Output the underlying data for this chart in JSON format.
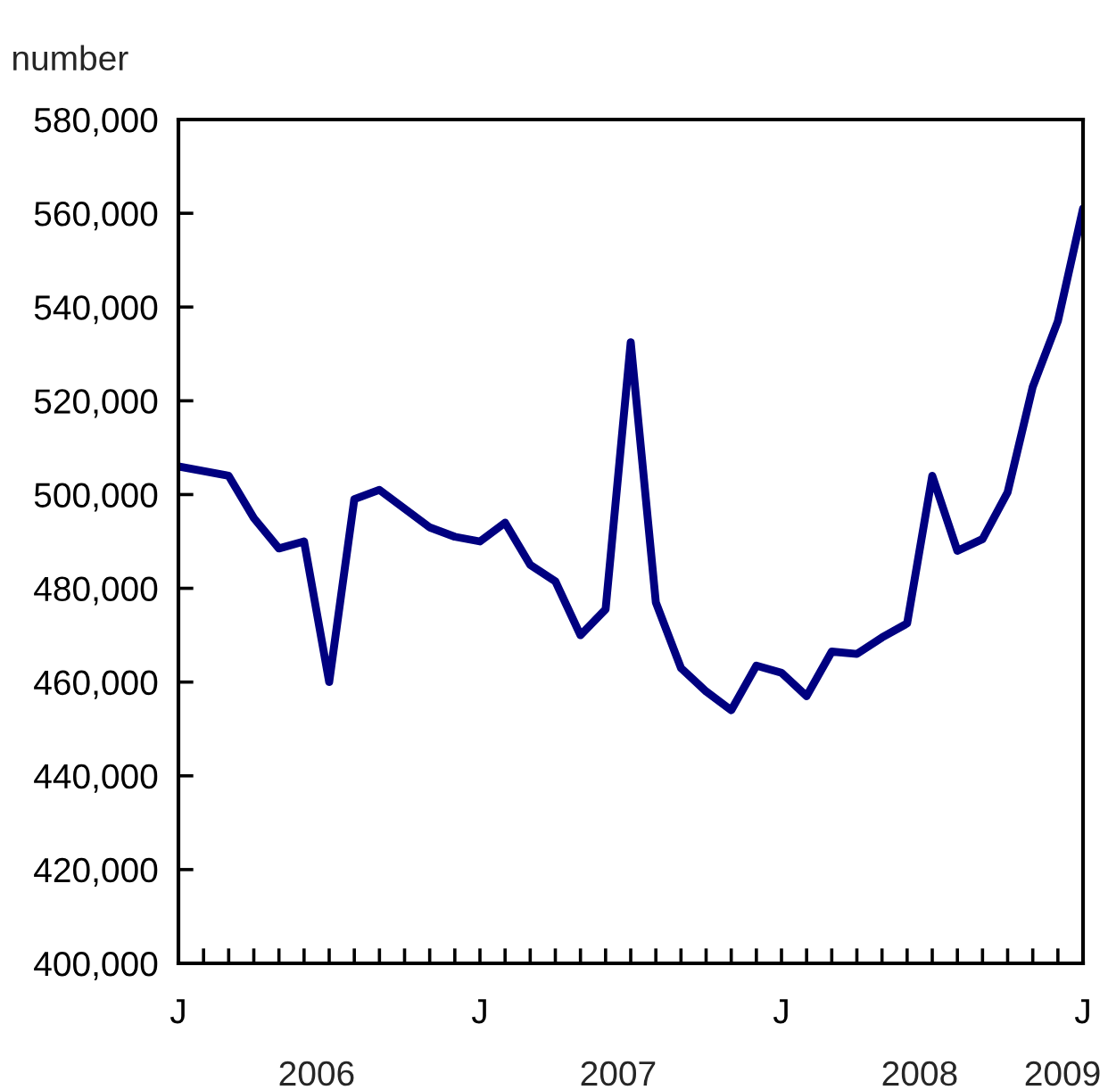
{
  "chart_data": {
    "type": "line",
    "ylabel": "number",
    "categories": [
      "J",
      null,
      null,
      null,
      null,
      null,
      null,
      null,
      null,
      null,
      null,
      null,
      "J",
      null,
      null,
      null,
      null,
      null,
      null,
      null,
      null,
      null,
      null,
      null,
      "J",
      null,
      null,
      null,
      null,
      null,
      null,
      null,
      null,
      null,
      null,
      null,
      "J"
    ],
    "series": [
      {
        "color": "#000080",
        "values": [
          506000,
          505000,
          504000,
          495000,
          488500,
          490000,
          460000,
          499000,
          501000,
          497000,
          493000,
          491000,
          490000,
          494000,
          485000,
          481500,
          470000,
          475500,
          532500,
          477000,
          463000,
          458000,
          454000,
          463500,
          462000,
          457000,
          466500,
          466000,
          469500,
          472500,
          504000,
          488000,
          490500,
          500500,
          523000,
          537000,
          561000
        ]
      }
    ],
    "ylim": [
      400000,
      580000
    ],
    "yticks": [
      {
        "value": 400000,
        "label": "400,000"
      },
      {
        "value": 420000,
        "label": "420,000"
      },
      {
        "value": 440000,
        "label": "440,000"
      },
      {
        "value": 460000,
        "label": "460,000"
      },
      {
        "value": 480000,
        "label": "480,000"
      },
      {
        "value": 500000,
        "label": "500,000"
      },
      {
        "value": 520000,
        "label": "520,000"
      },
      {
        "value": 540000,
        "label": "540,000"
      },
      {
        "value": 560000,
        "label": "560,000"
      },
      {
        "value": 580000,
        "label": "580,000"
      }
    ],
    "annotations": [
      "2006",
      "2007",
      "2008",
      "2009"
    ],
    "grid": false,
    "marker": "none",
    "line_style": "solid"
  }
}
